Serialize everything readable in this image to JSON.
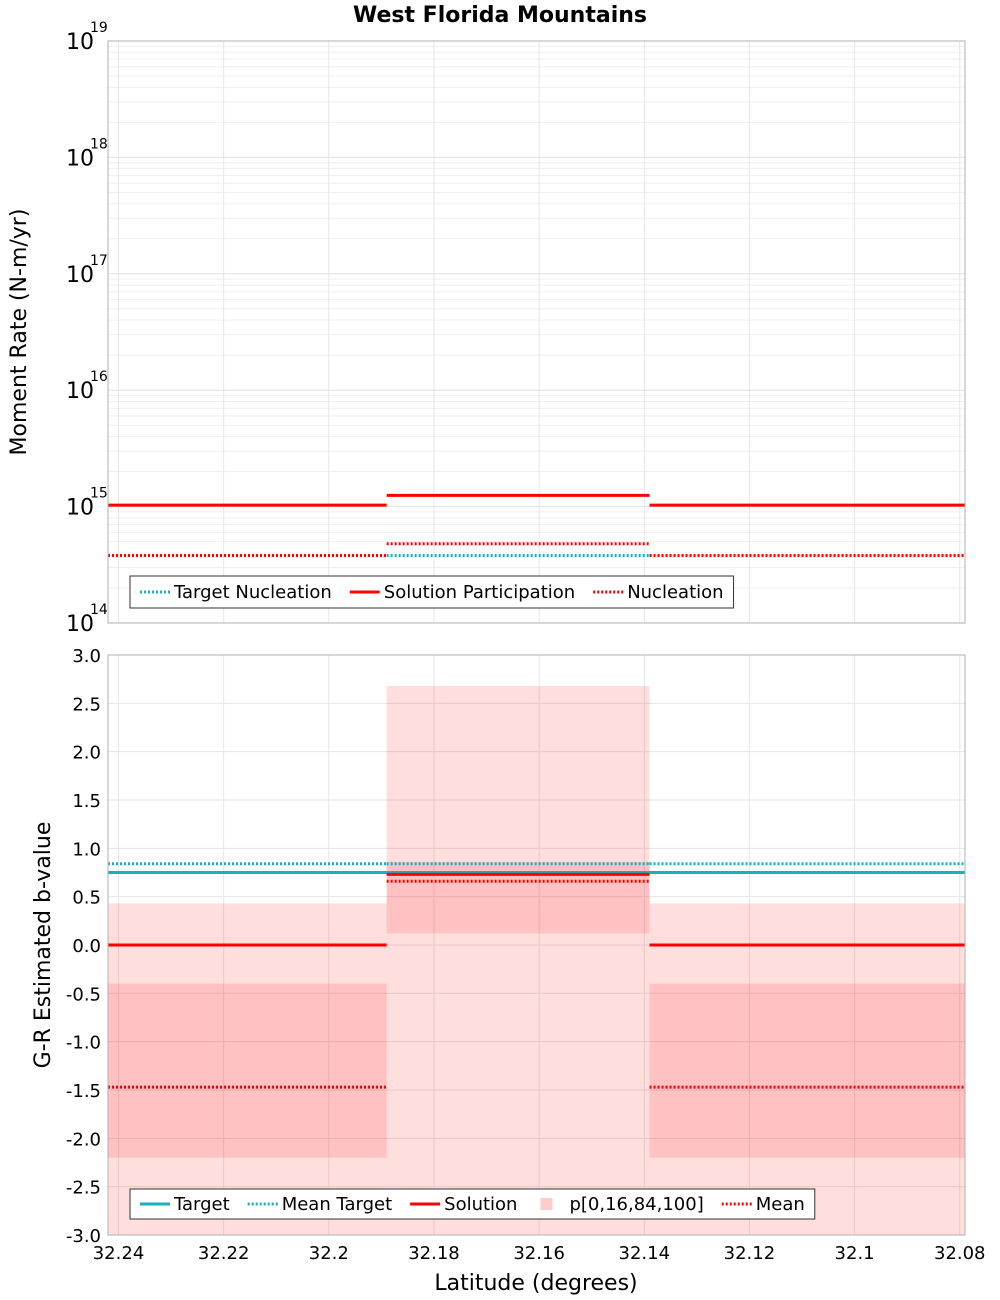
{
  "chart_data": [
    {
      "type": "line",
      "title": "West Florida Mountains",
      "xlabel": "",
      "ylabel": "Moment Rate (N-m/yr)",
      "yscale": "log",
      "ylim": [
        100000000000000.0,
        1e+19
      ],
      "xlim": [
        32.242,
        32.079
      ],
      "x_reversed": true,
      "grid": true,
      "y_ticks": [
        {
          "base": "10",
          "exp": "14"
        },
        {
          "base": "10",
          "exp": "15"
        },
        {
          "base": "10",
          "exp": "16"
        },
        {
          "base": "10",
          "exp": "17"
        },
        {
          "base": "10",
          "exp": "18"
        },
        {
          "base": "10",
          "exp": "19"
        }
      ],
      "legend_position": "lower-left",
      "legend": [
        "Target Nucleation",
        "Solution Participation",
        "Nucleation"
      ],
      "series": [
        {
          "name": "Target Nucleation",
          "color": "#17b0be",
          "style": "dotted",
          "segments": [
            {
              "x0": 32.242,
              "x1": 32.189,
              "y": 380000000000000.0
            },
            {
              "x0": 32.189,
              "x1": 32.139,
              "y": 380000000000000.0
            },
            {
              "x0": 32.139,
              "x1": 32.079,
              "y": 380000000000000.0
            }
          ]
        },
        {
          "name": "Solution Participation",
          "color": "#ff0000",
          "style": "solid",
          "segments": [
            {
              "x0": 32.242,
              "x1": 32.189,
              "y": 1030000000000000.0
            },
            {
              "x0": 32.189,
              "x1": 32.139,
              "y": 1250000000000000.0
            },
            {
              "x0": 32.139,
              "x1": 32.079,
              "y": 1030000000000000.0
            }
          ]
        },
        {
          "name": "Nucleation",
          "color": "#ff0000",
          "style": "dotted",
          "segments": [
            {
              "x0": 32.242,
              "x1": 32.189,
              "y": 380000000000000.0
            },
            {
              "x0": 32.189,
              "x1": 32.139,
              "y": 480000000000000.0
            },
            {
              "x0": 32.139,
              "x1": 32.079,
              "y": 380000000000000.0
            }
          ]
        }
      ]
    },
    {
      "type": "line",
      "title": "",
      "xlabel": "Latitude (degrees)",
      "ylabel": "G-R Estimated b-value",
      "ylim": [
        -3.0,
        3.0
      ],
      "xlim": [
        32.242,
        32.079
      ],
      "x_reversed": true,
      "grid": true,
      "x_ticks": [
        32.24,
        32.22,
        32.2,
        32.18,
        32.16,
        32.14,
        32.12,
        32.1,
        32.08
      ],
      "x_tick_labels": [
        "32.24",
        "32.22",
        "32.2",
        "32.18",
        "32.16",
        "32.14",
        "32.12",
        "32.1",
        "32.08"
      ],
      "y_ticks": [
        3.0,
        2.5,
        2.0,
        1.5,
        1.0,
        0.5,
        0.0,
        -0.5,
        -1.0,
        -1.5,
        -2.0,
        -2.5,
        -3.0
      ],
      "y_tick_labels": [
        "3.0",
        "2.5",
        "2.0",
        "1.5",
        "1.0",
        "0.5",
        "0.0",
        "-0.5",
        "-1.0",
        "-1.5",
        "-2.0",
        "-2.5",
        "-3.0"
      ],
      "legend_position": "lower-left",
      "legend": [
        "Target",
        "Mean Target",
        "Solution",
        "p[0,16,84,100]",
        "Mean"
      ],
      "bands": [
        {
          "name": "p[0,16,84,100]",
          "color": "#ff0000",
          "opacity": 0.13,
          "segments": [
            {
              "x0": 32.242,
              "x1": 32.189,
              "y0": -3.0,
              "y1": 0.43
            },
            {
              "x0": 32.189,
              "x1": 32.139,
              "y0": -3.0,
              "y1": 2.68
            },
            {
              "x0": 32.139,
              "x1": 32.079,
              "y0": -3.0,
              "y1": 0.43
            }
          ]
        },
        {
          "name": "p[0,16,84,100]",
          "color": "#ff0000",
          "opacity": 0.13,
          "segments": [
            {
              "x0": 32.242,
              "x1": 32.189,
              "y0": -2.2,
              "y1": -0.4
            },
            {
              "x0": 32.189,
              "x1": 32.139,
              "y0": 0.12,
              "y1": 0.86
            },
            {
              "x0": 32.139,
              "x1": 32.079,
              "y0": -2.2,
              "y1": -0.4
            }
          ]
        }
      ],
      "series": [
        {
          "name": "Target",
          "color": "#17b0be",
          "style": "solid",
          "segments": [
            {
              "x0": 32.242,
              "x1": 32.189,
              "y": 0.75
            },
            {
              "x0": 32.189,
              "x1": 32.139,
              "y": 0.75
            },
            {
              "x0": 32.139,
              "x1": 32.079,
              "y": 0.75
            }
          ]
        },
        {
          "name": "Mean Target",
          "color": "#17b0be",
          "style": "dotted",
          "segments": [
            {
              "x0": 32.242,
              "x1": 32.189,
              "y": 0.84
            },
            {
              "x0": 32.189,
              "x1": 32.139,
              "y": 0.84
            },
            {
              "x0": 32.139,
              "x1": 32.079,
              "y": 0.84
            }
          ]
        },
        {
          "name": "Solution",
          "color": "#ff0000",
          "style": "solid",
          "segments": [
            {
              "x0": 32.242,
              "x1": 32.189,
              "y": 0.0
            },
            {
              "x0": 32.189,
              "x1": 32.139,
              "y": 0.73
            },
            {
              "x0": 32.139,
              "x1": 32.079,
              "y": 0.0
            }
          ]
        },
        {
          "name": "Mean",
          "color": "#ff0000",
          "style": "dotted",
          "segments": [
            {
              "x0": 32.242,
              "x1": 32.189,
              "y": -1.47
            },
            {
              "x0": 32.189,
              "x1": 32.139,
              "y": 0.66
            },
            {
              "x0": 32.139,
              "x1": 32.079,
              "y": -1.47
            }
          ]
        }
      ]
    }
  ]
}
